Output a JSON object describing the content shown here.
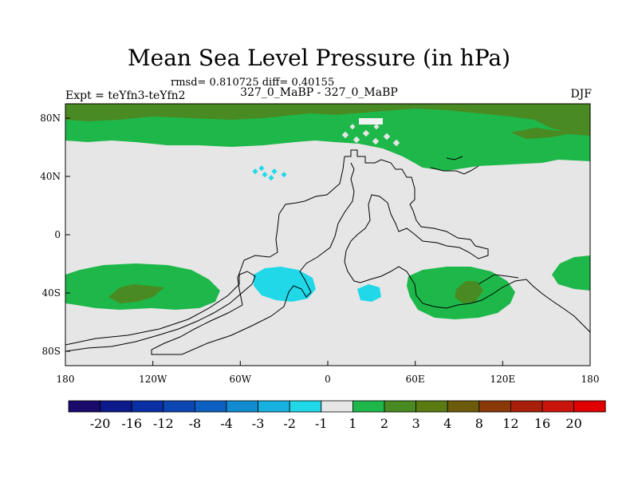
{
  "title": "Mean Sea Level Pressure (in hPa)",
  "stats": "rmsd= 0.810725 diff= 0.40155",
  "subtitle": "327_0_MaBP - 327_0_MaBP",
  "expt": "Expt = teYfn3-teYfn2",
  "season": "DJF",
  "map": {
    "lon_labels": [
      "180",
      "120W",
      "60W",
      "0",
      "60E",
      "120E",
      "180"
    ],
    "lat_labels": [
      "80N",
      "40N",
      "0",
      "40S",
      "80S"
    ]
  },
  "colorbar": {
    "labels": [
      "-20",
      "-16",
      "-12",
      "-8",
      "-4",
      "-3",
      "-2",
      "-1",
      "1",
      "2",
      "3",
      "4",
      "8",
      "12",
      "16",
      "20"
    ],
    "colors": [
      "#1a0a6b",
      "#0d1a8c",
      "#0a2ea3",
      "#0b46b3",
      "#0e5fc2",
      "#128bd0",
      "#18b1df",
      "#20d8e8",
      "#e6e6e6",
      "#1eb84a",
      "#4a8a22",
      "#5a7a12",
      "#6b5b0a",
      "#8a3a08",
      "#a81f0a",
      "#c8140a",
      "#e00000"
    ]
  },
  "style": {
    "background": "#e6e6e6",
    "positive_1": "#1eb84a",
    "positive_2": "#4a8a22",
    "positive_3": "#5a7a12",
    "negative_1": "#20d8e8"
  }
}
